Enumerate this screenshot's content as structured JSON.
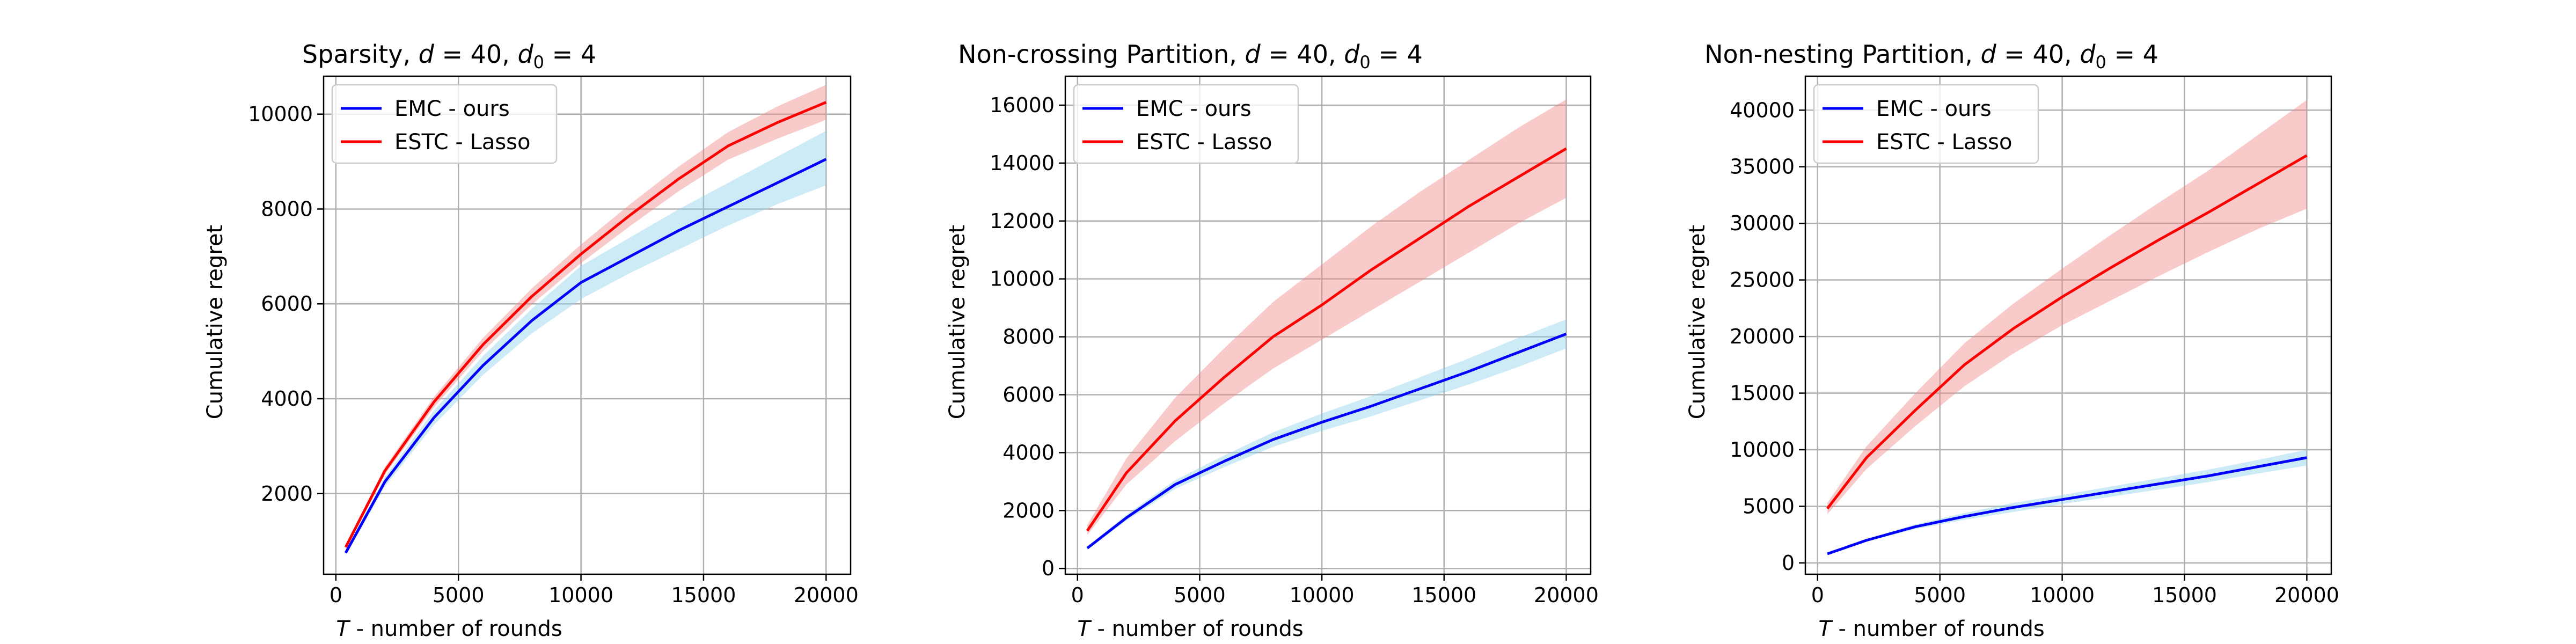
{
  "colors": {
    "emc_line": "#0000ff",
    "emc_band": "#87ceeb",
    "estc_line": "#ff0000",
    "estc_band": "#f08080"
  },
  "chart_data": [
    {
      "type": "line",
      "title": "Sparsity, d = 40,  d0 = 4",
      "title_parts": {
        "name": "Sparsity, ",
        "d": "d",
        "eq1": " = 40,  ",
        "d0": "d",
        "sub0": "0",
        "eq2": " = 4"
      },
      "xlabel_var": "T",
      "xlabel_rest": " - number of rounds",
      "ylabel": "Cumulative regret",
      "xlim": [
        -500,
        21000
      ],
      "ylim": [
        300,
        10800
      ],
      "xticks": [
        0,
        5000,
        10000,
        15000,
        20000
      ],
      "yticks": [
        2000,
        4000,
        6000,
        8000,
        10000
      ],
      "legend_loc": "upper left",
      "x": [
        400,
        2000,
        4000,
        6000,
        8000,
        10000,
        12000,
        14000,
        16000,
        18000,
        20000
      ],
      "series": [
        {
          "name": "EMC - ours",
          "color_key": "emc",
          "values": [
            750,
            2250,
            3600,
            4700,
            5650,
            6450,
            7000,
            7550,
            8050,
            8550,
            9050
          ],
          "lower": [
            700,
            2150,
            3450,
            4500,
            5380,
            6100,
            6650,
            7150,
            7650,
            8100,
            8500
          ],
          "upper": [
            800,
            2350,
            3750,
            4900,
            5900,
            6800,
            7400,
            8000,
            8550,
            9100,
            9650
          ]
        },
        {
          "name": "ESTC - Lasso",
          "color_key": "estc",
          "values": [
            870,
            2480,
            3930,
            5140,
            6160,
            7050,
            7870,
            8640,
            9330,
            9820,
            10250
          ],
          "lower": [
            820,
            2400,
            3820,
            5000,
            5990,
            6860,
            7640,
            8380,
            9040,
            9480,
            9880
          ],
          "upper": [
            920,
            2560,
            4040,
            5280,
            6330,
            7250,
            8100,
            8900,
            9620,
            10160,
            10620
          ]
        }
      ]
    },
    {
      "type": "line",
      "title": "Non-crossing Partition, d = 40,  d0 = 4",
      "title_parts": {
        "name": "Non-crossing Partition, ",
        "d": "d",
        "eq1": " = 40,  ",
        "d0": "d",
        "sub0": "0",
        "eq2": " = 4"
      },
      "xlabel_var": "T",
      "xlabel_rest": " - number of rounds",
      "ylabel": "Cumulative regret",
      "xlim": [
        -500,
        21000
      ],
      "ylim": [
        -200,
        17000
      ],
      "xticks": [
        0,
        5000,
        10000,
        15000,
        20000
      ],
      "yticks": [
        0,
        2000,
        4000,
        6000,
        8000,
        10000,
        12000,
        14000,
        16000
      ],
      "legend_loc": "upper left",
      "x": [
        400,
        2000,
        4000,
        6000,
        8000,
        10000,
        12000,
        14000,
        16000,
        18000,
        20000
      ],
      "series": [
        {
          "name": "EMC - ours",
          "color_key": "emc",
          "values": [
            700,
            1750,
            2900,
            3700,
            4450,
            5050,
            5600,
            6200,
            6800,
            7450,
            8100
          ],
          "lower": [
            650,
            1650,
            2750,
            3500,
            4200,
            4750,
            5250,
            5800,
            6350,
            6950,
            7600
          ],
          "upper": [
            750,
            1850,
            3050,
            3900,
            4700,
            5350,
            5950,
            6600,
            7250,
            7950,
            8600
          ]
        },
        {
          "name": "ESTC - Lasso",
          "color_key": "estc",
          "values": [
            1300,
            3300,
            5100,
            6600,
            8000,
            9100,
            10300,
            11400,
            12500,
            13500,
            14500
          ],
          "lower": [
            1150,
            2900,
            4400,
            5700,
            6900,
            7900,
            8900,
            9900,
            10900,
            11900,
            12800
          ],
          "upper": [
            1500,
            3800,
            5900,
            7600,
            9200,
            10500,
            11800,
            13000,
            14100,
            15200,
            16200
          ]
        }
      ]
    },
    {
      "type": "line",
      "title": "Non-nesting Partition, d = 40,  d0 = 4",
      "title_parts": {
        "name": "Non-nesting Partition, ",
        "d": "d",
        "eq1": " = 40,  ",
        "d0": "d",
        "sub0": "0",
        "eq2": " = 4"
      },
      "xlabel_var": "T",
      "xlabel_rest": " - number of rounds",
      "ylabel": "Cumulative regret",
      "xlim": [
        -500,
        21000
      ],
      "ylim": [
        -1000,
        43000
      ],
      "xticks": [
        0,
        5000,
        10000,
        15000,
        20000
      ],
      "yticks": [
        0,
        5000,
        10000,
        15000,
        20000,
        25000,
        30000,
        35000,
        40000
      ],
      "legend_loc": "upper left",
      "x": [
        400,
        2000,
        4000,
        6000,
        8000,
        10000,
        12000,
        14000,
        16000,
        18000,
        20000
      ],
      "series": [
        {
          "name": "EMC - ours",
          "color_key": "emc",
          "values": [
            800,
            2000,
            3200,
            4100,
            4900,
            5600,
            6300,
            7000,
            7700,
            8500,
            9300
          ],
          "lower": [
            750,
            1900,
            3000,
            3800,
            4500,
            5200,
            5850,
            6500,
            7150,
            7900,
            8600
          ],
          "upper": [
            850,
            2100,
            3400,
            4400,
            5300,
            6000,
            6750,
            7500,
            8250,
            9100,
            10000
          ]
        },
        {
          "name": "ESTC - Lasso",
          "color_key": "estc",
          "values": [
            4800,
            9300,
            13500,
            17500,
            20700,
            23500,
            26100,
            28600,
            31000,
            33500,
            36000
          ],
          "lower": [
            4300,
            8300,
            12100,
            15600,
            18500,
            21000,
            23200,
            25400,
            27500,
            29500,
            31300
          ],
          "upper": [
            5300,
            10300,
            15000,
            19400,
            22900,
            26000,
            29000,
            31900,
            34700,
            37800,
            40900
          ]
        }
      ]
    }
  ]
}
